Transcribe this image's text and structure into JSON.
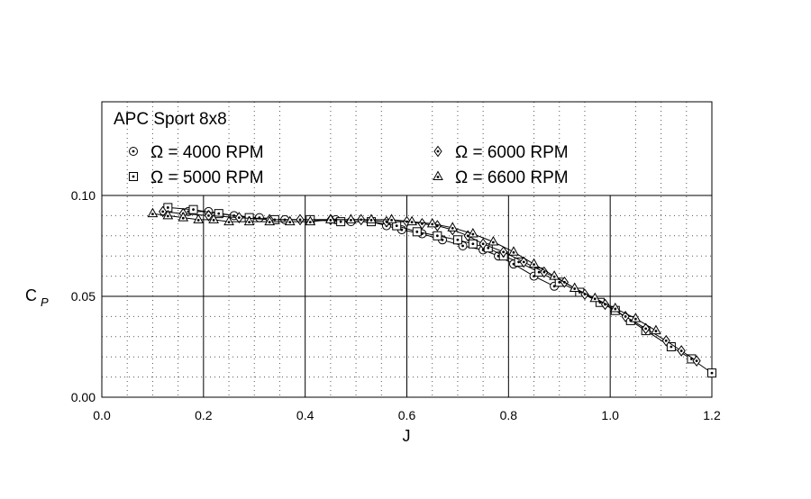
{
  "chart_data": {
    "type": "scatter",
    "title": "APC Sport 8x8",
    "xlabel": "J",
    "ylabel_main": "C",
    "ylabel_sub": "P",
    "xlim": [
      0.0,
      1.2
    ],
    "ylim": [
      0.0,
      0.145
    ],
    "x_ticks": [
      {
        "v": 0.0,
        "label": "0.0"
      },
      {
        "v": 0.2,
        "label": "0.2"
      },
      {
        "v": 0.4,
        "label": "0.4"
      },
      {
        "v": 0.6,
        "label": "0.6"
      },
      {
        "v": 0.8,
        "label": "0.8"
      },
      {
        "v": 1.0,
        "label": "1.0"
      },
      {
        "v": 1.2,
        "label": "1.2"
      }
    ],
    "y_ticks": [
      {
        "v": 0.0,
        "label": "0.00"
      },
      {
        "v": 0.05,
        "label": "0.05"
      },
      {
        "v": 0.1,
        "label": "0.10"
      }
    ],
    "grid": "major solid, minor dotted",
    "legend_placement": "top",
    "series": [
      {
        "name": "Ω = 4000 RPM",
        "marker": "circle-dot",
        "x": [
          0.17,
          0.21,
          0.26,
          0.31,
          0.36,
          0.41,
          0.46,
          0.49,
          0.53,
          0.56,
          0.59,
          0.63,
          0.67,
          0.71,
          0.75,
          0.78,
          0.81,
          0.85,
          0.89
        ],
        "y": [
          0.092,
          0.092,
          0.09,
          0.089,
          0.088,
          0.088,
          0.088,
          0.087,
          0.087,
          0.085,
          0.083,
          0.081,
          0.078,
          0.075,
          0.073,
          0.07,
          0.066,
          0.06,
          0.055
        ]
      },
      {
        "name": "Ω = 5000 RPM",
        "marker": "square-dot",
        "x": [
          0.13,
          0.18,
          0.23,
          0.29,
          0.34,
          0.41,
          0.47,
          0.53,
          0.58,
          0.62,
          0.66,
          0.7,
          0.73,
          0.76,
          0.79,
          0.82,
          0.86,
          0.9,
          0.94,
          0.98,
          1.01,
          1.04,
          1.07,
          1.12,
          1.16,
          1.2
        ],
        "y": [
          0.094,
          0.093,
          0.091,
          0.089,
          0.088,
          0.088,
          0.087,
          0.087,
          0.085,
          0.082,
          0.08,
          0.078,
          0.076,
          0.074,
          0.07,
          0.067,
          0.062,
          0.057,
          0.052,
          0.047,
          0.043,
          0.038,
          0.033,
          0.025,
          0.019,
          0.012
        ]
      },
      {
        "name": "Ω = 6000 RPM",
        "marker": "diamond-dot",
        "x": [
          0.12,
          0.16,
          0.21,
          0.27,
          0.33,
          0.39,
          0.45,
          0.51,
          0.56,
          0.6,
          0.63,
          0.66,
          0.69,
          0.72,
          0.75,
          0.79,
          0.83,
          0.87,
          0.91,
          0.95,
          0.99,
          1.03,
          1.07,
          1.11,
          1.14,
          1.17
        ],
        "y": [
          0.092,
          0.091,
          0.09,
          0.089,
          0.088,
          0.088,
          0.088,
          0.088,
          0.087,
          0.087,
          0.086,
          0.085,
          0.083,
          0.08,
          0.076,
          0.072,
          0.067,
          0.062,
          0.057,
          0.051,
          0.046,
          0.04,
          0.034,
          0.028,
          0.023,
          0.018
        ]
      },
      {
        "name": "Ω = 6600 RPM",
        "marker": "triangle-dot",
        "x": [
          0.1,
          0.13,
          0.16,
          0.19,
          0.22,
          0.25,
          0.29,
          0.33,
          0.37,
          0.41,
          0.45,
          0.49,
          0.53,
          0.57,
          0.61,
          0.65,
          0.69,
          0.73,
          0.77,
          0.81,
          0.85,
          0.89,
          0.93,
          0.97,
          1.01,
          1.05,
          1.09
        ],
        "y": [
          0.091,
          0.09,
          0.089,
          0.088,
          0.088,
          0.087,
          0.087,
          0.087,
          0.087,
          0.087,
          0.088,
          0.088,
          0.088,
          0.088,
          0.087,
          0.086,
          0.084,
          0.081,
          0.077,
          0.072,
          0.066,
          0.06,
          0.054,
          0.049,
          0.044,
          0.039,
          0.033
        ]
      }
    ]
  }
}
